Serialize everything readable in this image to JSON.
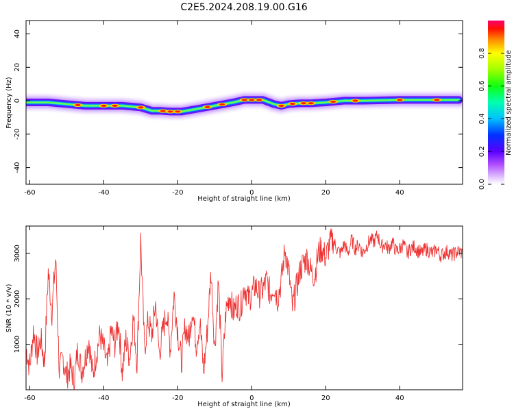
{
  "title": "C2E5.2024.208.19.00.G16",
  "chart_data": [
    {
      "type": "heatmap",
      "xlabel": "Height of straight line (km)",
      "ylabel": "Frequency (Hz)",
      "xlim": [
        -61,
        57
      ],
      "ylim": [
        -50,
        48
      ],
      "xticks": [
        -60,
        -40,
        -20,
        0,
        20,
        40
      ],
      "yticks": [
        -40,
        -20,
        0,
        20,
        40
      ],
      "colorbar": {
        "label": "Normalized spectral amplitude",
        "range": [
          0,
          1
        ],
        "ticks": [
          "0.0",
          "0.2",
          "0.4",
          "0.6",
          "0.8"
        ],
        "tick_values": [
          0,
          0.2,
          0.4,
          0.6,
          0.8
        ],
        "colormap": "gist_rainbow_r"
      },
      "ridge": {
        "x": [
          -61,
          -55,
          -50,
          -45,
          -40,
          -35,
          -30,
          -27,
          -25,
          -22,
          -19,
          -15,
          -10,
          -5,
          -2,
          0,
          3,
          6,
          8,
          10,
          13,
          16,
          20,
          25,
          30,
          40,
          50,
          56
        ],
        "y": [
          -1,
          -1,
          -2,
          -3,
          -3,
          -3,
          -4,
          -6,
          -6,
          -6.5,
          -6.5,
          -5,
          -3,
          -1,
          0.5,
          0.5,
          0.5,
          -2,
          -3,
          -2,
          -1.5,
          -1.5,
          -1,
          0,
          0,
          0.5,
          0.5,
          0.5
        ]
      },
      "peaks_x": [
        -47,
        -40,
        -37,
        -30,
        -24,
        -22,
        -20,
        -12,
        -8,
        -2,
        0,
        2,
        8,
        11,
        14,
        16,
        22,
        28,
        40,
        50
      ]
    },
    {
      "type": "line",
      "xlabel": "Height of straight line (km)",
      "ylabel": "SNR (10 * v/v)",
      "xlim": [
        -61,
        57
      ],
      "ylim": [
        0,
        3600
      ],
      "xticks": [
        -60,
        -40,
        -20,
        0,
        20,
        40
      ],
      "yticks": [
        1000,
        2000,
        3000
      ],
      "series_color": "#ee3030",
      "x": [
        -61,
        -60,
        -59,
        -58,
        -57,
        -56,
        -55,
        -54,
        -53,
        -52,
        -51,
        -50,
        -49,
        -48,
        -47,
        -46,
        -45,
        -44,
        -43,
        -42,
        -41,
        -40,
        -39,
        -38,
        -37,
        -36,
        -35,
        -34,
        -33,
        -32,
        -31,
        -30,
        -29,
        -28,
        -27,
        -26,
        -25,
        -24,
        -23,
        -22,
        -21,
        -20,
        -19,
        -18,
        -17,
        -16,
        -15,
        -14,
        -13,
        -12,
        -11,
        -10,
        -9,
        -8,
        -7,
        -6,
        -5,
        -4,
        -3,
        -2,
        -1,
        0,
        1,
        2,
        3,
        4,
        5,
        6,
        7,
        8,
        9,
        10,
        11,
        12,
        13,
        14,
        15,
        16,
        17,
        18,
        19,
        20,
        21,
        22,
        23,
        24,
        25,
        26,
        27,
        28,
        29,
        30,
        31,
        32,
        33,
        34,
        35,
        36,
        37,
        38,
        39,
        40,
        41,
        42,
        43,
        44,
        45,
        46,
        47,
        48,
        49,
        50,
        51,
        52,
        53,
        54,
        55,
        56,
        57
      ],
      "y": [
        900,
        500,
        1300,
        800,
        1100,
        600,
        2600,
        1700,
        2900,
        400,
        700,
        300,
        500,
        200,
        900,
        400,
        700,
        1100,
        300,
        800,
        1200,
        900,
        500,
        1300,
        1000,
        1500,
        400,
        1100,
        700,
        1600,
        600,
        3300,
        900,
        1500,
        1200,
        1900,
        800,
        1300,
        1700,
        900,
        2100,
        1300,
        600,
        1400,
        1100,
        1800,
        1000,
        1500,
        400,
        1300,
        2600,
        900,
        2400,
        300,
        1700,
        2100,
        1700,
        1900,
        1800,
        2300,
        2000,
        2100,
        2300,
        2100,
        2200,
        2400,
        2100,
        2300,
        2000,
        2400,
        3100,
        2600,
        1800,
        2200,
        2600,
        2800,
        2900,
        2600,
        2500,
        3000,
        3100,
        2900,
        3200,
        3300,
        3100,
        3000,
        3200,
        3000,
        3300,
        3100,
        3200,
        3000,
        3150,
        3300,
        3250,
        3400,
        3150,
        3200,
        3100,
        3250,
        3050,
        3100,
        3200,
        3000,
        3100,
        3150,
        3050,
        3000,
        3100,
        3050,
        3000,
        3100,
        2950,
        3000,
        3050,
        2950,
        3000,
        3050,
        3000
      ]
    }
  ]
}
